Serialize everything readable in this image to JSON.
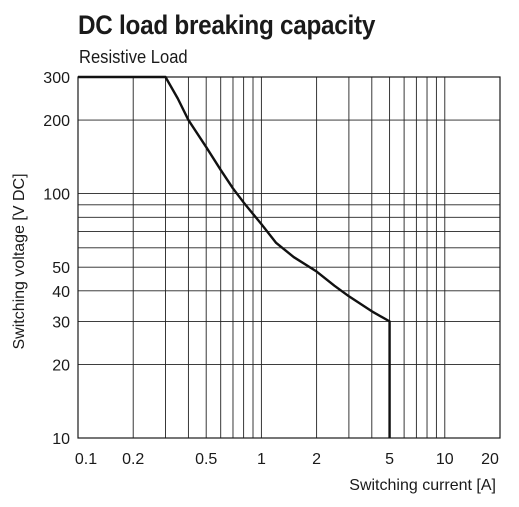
{
  "chart_data": {
    "type": "line",
    "title": "DC load breaking capacity",
    "subtitle": "Resistive Load",
    "xlabel": "Switching current [A]",
    "ylabel": "Switching voltage [V DC]",
    "x_scale": "log",
    "y_scale": "log",
    "xlim": [
      0.1,
      20
    ],
    "ylim": [
      10,
      300
    ],
    "grid": true,
    "x_ticks": [
      0.1,
      0.2,
      0.5,
      1,
      2,
      5,
      10,
      20
    ],
    "x_tick_labels": [
      "0.1",
      "0.2",
      "0.5",
      "1",
      "2",
      "5",
      "10",
      "20"
    ],
    "y_ticks": [
      10,
      20,
      30,
      40,
      50,
      100,
      200,
      300
    ],
    "y_tick_labels": [
      "10",
      "20",
      "30",
      "40",
      "50",
      "100",
      "200",
      "300"
    ],
    "x_gridlines": [
      0.2,
      0.3,
      0.4,
      0.5,
      0.6,
      0.7,
      0.8,
      0.9,
      1,
      2,
      3,
      4,
      5,
      6,
      7,
      8,
      9,
      10
    ],
    "y_gridlines": [
      20,
      30,
      40,
      50,
      60,
      70,
      80,
      90,
      100,
      200
    ],
    "series": [
      {
        "x": [
          0.1,
          0.3,
          0.35,
          0.4,
          0.5,
          0.6,
          0.7,
          0.8,
          1.0,
          1.2,
          1.5,
          2.0,
          2.5,
          3.0,
          4.0,
          5.0,
          5.0
        ],
        "y": [
          300,
          300,
          245,
          200,
          155,
          125,
          105,
          92,
          75,
          63,
          55,
          48,
          42,
          38,
          33,
          30,
          10
        ]
      }
    ]
  }
}
